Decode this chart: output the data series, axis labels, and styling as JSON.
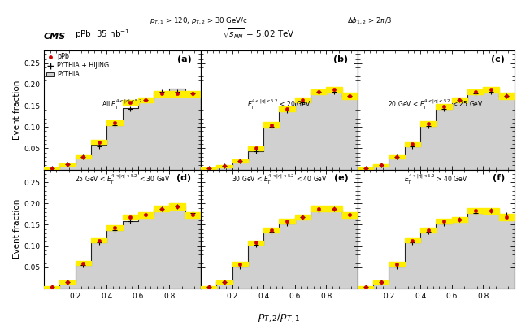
{
  "bin_edges": [
    0.0,
    0.1,
    0.2,
    0.3,
    0.4,
    0.5,
    0.6,
    0.7,
    0.8,
    0.9,
    1.0
  ],
  "bin_centers": [
    0.05,
    0.15,
    0.25,
    0.35,
    0.45,
    0.55,
    0.65,
    0.75,
    0.85,
    0.95
  ],
  "pythia_hist": {
    "a": [
      0.003,
      0.012,
      0.03,
      0.058,
      0.105,
      0.145,
      0.163,
      0.183,
      0.19,
      0.173
    ],
    "b": [
      0.002,
      0.008,
      0.02,
      0.044,
      0.1,
      0.138,
      0.158,
      0.183,
      0.19,
      0.173
    ],
    "c": [
      0.003,
      0.01,
      0.03,
      0.055,
      0.103,
      0.143,
      0.163,
      0.18,
      0.19,
      0.173
    ],
    "d": [
      0.003,
      0.015,
      0.055,
      0.108,
      0.138,
      0.158,
      0.173,
      0.188,
      0.193,
      0.178
    ],
    "e": [
      0.003,
      0.015,
      0.052,
      0.103,
      0.133,
      0.153,
      0.168,
      0.183,
      0.188,
      0.173
    ],
    "f": [
      0.003,
      0.015,
      0.052,
      0.108,
      0.133,
      0.153,
      0.163,
      0.178,
      0.183,
      0.173
    ]
  },
  "pPb_points": {
    "a": [
      0.003,
      0.012,
      0.03,
      0.065,
      0.11,
      0.158,
      0.163,
      0.178,
      0.178,
      0.178
    ],
    "b": [
      0.002,
      0.008,
      0.02,
      0.05,
      0.105,
      0.143,
      0.163,
      0.183,
      0.188,
      0.173
    ],
    "c": [
      0.003,
      0.01,
      0.03,
      0.06,
      0.108,
      0.148,
      0.163,
      0.183,
      0.188,
      0.173
    ],
    "d": [
      0.003,
      0.015,
      0.06,
      0.113,
      0.143,
      0.168,
      0.173,
      0.188,
      0.193,
      0.173
    ],
    "e": [
      0.003,
      0.015,
      0.058,
      0.108,
      0.138,
      0.158,
      0.168,
      0.188,
      0.188,
      0.173
    ],
    "f": [
      0.003,
      0.015,
      0.058,
      0.113,
      0.138,
      0.158,
      0.163,
      0.183,
      0.183,
      0.168
    ]
  },
  "hijing_points": {
    "a": [
      0.003,
      0.012,
      0.03,
      0.055,
      0.105,
      0.143,
      0.163,
      0.183,
      0.183,
      0.178
    ],
    "b": [
      0.002,
      0.008,
      0.02,
      0.044,
      0.1,
      0.138,
      0.158,
      0.183,
      0.183,
      0.173
    ],
    "c": [
      0.003,
      0.01,
      0.03,
      0.055,
      0.103,
      0.143,
      0.163,
      0.178,
      0.183,
      0.173
    ],
    "d": [
      0.003,
      0.015,
      0.055,
      0.108,
      0.138,
      0.158,
      0.173,
      0.188,
      0.193,
      0.178
    ],
    "e": [
      0.003,
      0.015,
      0.052,
      0.103,
      0.133,
      0.153,
      0.168,
      0.183,
      0.188,
      0.173
    ],
    "f": [
      0.003,
      0.015,
      0.052,
      0.108,
      0.133,
      0.153,
      0.163,
      0.178,
      0.183,
      0.173
    ]
  },
  "pPb_errors": [
    0.002,
    0.003,
    0.004,
    0.005,
    0.006,
    0.006,
    0.006,
    0.006,
    0.007,
    0.007
  ],
  "panel_labels": [
    "(a)",
    "(b)",
    "(c)",
    "(d)",
    "(e)",
    "(f)"
  ],
  "panel_subtitles_top": [
    "All $E_T^{4<|\\eta|<5.2}$",
    "$E_T^{4<|\\eta|<5.2}$ < 20 GeV",
    "20 GeV < $E_T^{4<|\\eta|<5.2}$ < 25 GeV"
  ],
  "panel_subtitles_bot": [
    "25 GeV < $E_T^{4<|\\eta|<5.2}$ < 30 GeV",
    "30 GeV < $E_T^{4<|\\eta|<5.2}$ < 40 GeV",
    "$E_T^{4<|\\eta|<5.2}$ > 40 GeV"
  ],
  "xlabel": "$p_{T,2}/p_{T,1}$",
  "ylabel": "Event fraction",
  "ylim": [
    0.0,
    0.28
  ],
  "xlim": [
    0.0,
    1.0
  ],
  "hist_facecolor": "#d0d0d0",
  "hist_edgecolor": "#222222",
  "pPb_color": "#cc0000",
  "hijing_color": "#000000",
  "yellow_color": "#ffee00",
  "cms_label": "CMS",
  "cms_sub": "pPb  35 nb$^{-1}$",
  "energy_text": "$\\sqrt{s_{NN}}$ = 5.02 TeV",
  "top_b_text": "$p_{T,1}$ > 120, $p_{T,2}$ > 30 GeV/c",
  "top_c_text": "$\\Delta\\phi_{1,2}$ > $2\\pi$/3"
}
